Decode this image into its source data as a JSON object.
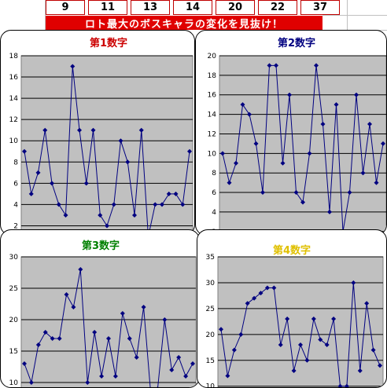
{
  "header": {
    "numbers": [
      "9",
      "11",
      "13",
      "14",
      "20",
      "22",
      "37"
    ],
    "banner": "ロト最大のボスキャラの変化を見抜け！"
  },
  "colors": {
    "banner_bg": "#e00000",
    "plot_bg": "#c0c0c0",
    "series_line": "#000080",
    "title_1": "#cc0000",
    "title_2": "#000080",
    "title_3": "#008000",
    "title_4": "#e0c000"
  },
  "chart_data": [
    {
      "type": "line",
      "title": "第1数字",
      "ylim": [
        1,
        18
      ],
      "yticks": [
        2,
        4,
        6,
        8,
        10,
        12,
        14,
        16,
        18
      ],
      "grid": true,
      "series": [
        {
          "values": [
            9,
            5,
            7,
            11,
            6,
            4,
            3,
            17,
            11,
            6,
            11,
            3,
            2,
            4,
            10,
            8,
            3,
            11,
            1,
            4,
            4,
            5,
            5,
            4,
            9
          ]
        }
      ]
    },
    {
      "type": "line",
      "title": "第2数字",
      "ylim": [
        1.5,
        20
      ],
      "yticks": [
        2,
        4,
        6,
        8,
        10,
        12,
        14,
        16,
        18,
        20
      ],
      "grid": true,
      "series": [
        {
          "values": [
            10,
            7,
            9,
            15,
            14,
            11,
            6,
            19,
            19,
            9,
            16,
            6,
            5,
            10,
            19,
            13,
            4,
            15,
            2,
            6,
            16,
            8,
            13,
            7,
            11
          ]
        }
      ]
    },
    {
      "type": "line",
      "title": "第3数字",
      "ylim": [
        9,
        30
      ],
      "yticks": [
        10,
        15,
        20,
        25,
        30
      ],
      "grid": true,
      "series": [
        {
          "values": [
            13,
            10,
            16,
            18,
            17,
            17,
            24,
            22,
            28,
            10,
            18,
            11,
            17,
            11,
            21,
            17,
            14,
            22,
            8.5,
            9,
            20,
            12,
            14,
            11,
            13
          ]
        }
      ]
    },
    {
      "type": "line",
      "title": "第4数字",
      "ylim": [
        9.5,
        35
      ],
      "yticks": [
        10,
        15,
        20,
        25,
        30,
        35
      ],
      "grid": true,
      "series": [
        {
          "values": [
            21,
            12,
            17,
            20,
            26,
            27,
            28,
            29,
            29,
            18,
            23,
            13,
            18,
            15,
            23,
            19,
            18,
            23,
            10,
            10,
            30,
            13,
            26,
            17,
            14
          ]
        }
      ]
    }
  ]
}
